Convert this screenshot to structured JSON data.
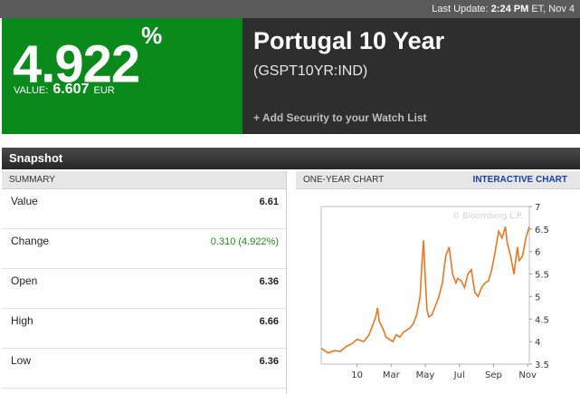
{
  "topbar": {
    "prefix": "Last Update:",
    "time": "2:24 PM",
    "suffix": "ET, Nov 4"
  },
  "quote": {
    "percent": "4.922",
    "percent_sign": "%",
    "value_label": "VALUE:",
    "value": "6.607",
    "currency": "EUR"
  },
  "security": {
    "name": "Portugal 10 Year",
    "ticker": "(GSPT10YR:IND)",
    "watch_link": "+ Add Security to your Watch List"
  },
  "snapshot": {
    "title": "Snapshot"
  },
  "summary": {
    "header": "SUMMARY",
    "rows": [
      {
        "label": "Value",
        "value": "6.61"
      },
      {
        "label": "Change",
        "value": "0.310 (4.922%)"
      },
      {
        "label": "Open",
        "value": "6.36"
      },
      {
        "label": "High",
        "value": "6.66"
      },
      {
        "label": "Low",
        "value": "6.36"
      }
    ]
  },
  "chart_panel": {
    "header": "ONE-YEAR CHART",
    "interactive_link": "INTERACTIVE CHART",
    "watermark": "© Bloomberg L.P."
  },
  "colors": {
    "green": "#0b8a1c",
    "line": "#e87722",
    "link": "#1a3fa6"
  },
  "chart_data": {
    "type": "line",
    "x_ticks": [
      "10",
      "Mar",
      "May",
      "Jul",
      "Sep",
      "Nov"
    ],
    "x_tick_positions": [
      2.1,
      4.1,
      6.1,
      8.1,
      10.1,
      12.1
    ],
    "xlim": [
      0,
      12.2
    ],
    "y_ticks": [
      "3.5",
      "4",
      "4.5",
      "5",
      "5.5",
      "6",
      "6.5",
      "7"
    ],
    "ylim": [
      3.5,
      7
    ],
    "series": [
      {
        "x": [
          0,
          0.4,
          0.8,
          1.1,
          1.5,
          1.8,
          2.1,
          2.5,
          2.8,
          3.0,
          3.2,
          3.3,
          3.4,
          3.6,
          3.8,
          4.0,
          4.2,
          4.4,
          4.6,
          4.8,
          5.0,
          5.2,
          5.4,
          5.6,
          5.8,
          5.9,
          6.0,
          6.1,
          6.2,
          6.3,
          6.5,
          6.7,
          6.9,
          7.1,
          7.3,
          7.5,
          7.7,
          7.9,
          8.0,
          8.2,
          8.4,
          8.6,
          8.8,
          9.0,
          9.2,
          9.4,
          9.6,
          9.8,
          10.0,
          10.2,
          10.4,
          10.6,
          10.8,
          10.9,
          11.1,
          11.3,
          11.5,
          11.6,
          11.8,
          12.0,
          12.2
        ],
        "y": [
          3.85,
          3.75,
          3.8,
          3.78,
          3.9,
          3.95,
          4.05,
          4.0,
          4.15,
          4.35,
          4.55,
          4.75,
          4.45,
          4.3,
          4.1,
          4.05,
          4.0,
          4.15,
          4.1,
          4.2,
          4.25,
          4.3,
          4.4,
          4.6,
          5.0,
          5.7,
          6.25,
          5.4,
          4.7,
          4.55,
          4.6,
          4.8,
          5.0,
          5.3,
          5.9,
          6.1,
          5.5,
          5.3,
          5.4,
          5.35,
          5.2,
          5.5,
          5.6,
          5.1,
          5.0,
          5.2,
          5.3,
          5.35,
          5.6,
          6.0,
          6.45,
          6.3,
          6.55,
          6.2,
          5.9,
          5.5,
          6.1,
          5.8,
          5.9,
          6.3,
          6.55
        ]
      }
    ]
  }
}
